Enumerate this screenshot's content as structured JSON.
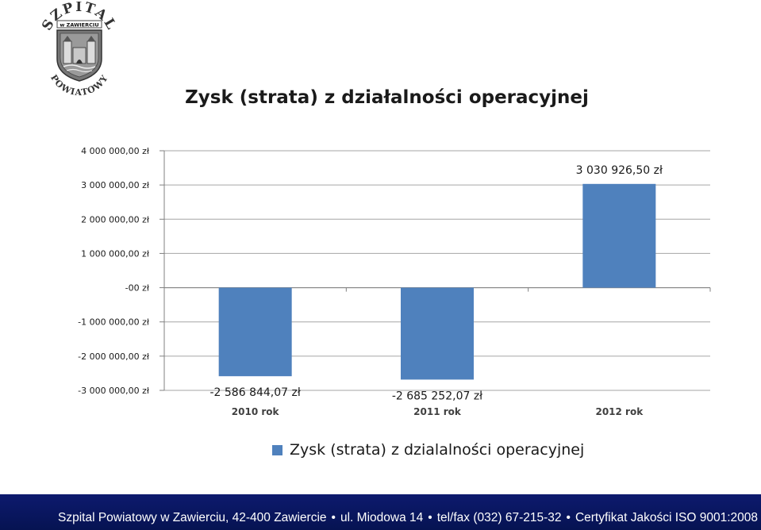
{
  "logo": {
    "arc_top": "SZPITAL",
    "small_text": "w ZAWIERCIU",
    "arc_bottom": "POWIATOWY"
  },
  "chart_data": {
    "type": "bar",
    "title": "Zysk (strata) z działalności operacyjnej",
    "categories": [
      "2010 rok",
      "2011 rok",
      "2012 rok"
    ],
    "series": [
      {
        "name": "Zysk (strata) z dzialalności operacyjnej",
        "values": [
          -2586844.07,
          -2685252.07,
          3030926.5
        ],
        "color": "#4f81bd"
      }
    ],
    "data_labels": [
      "-2 586 844,07 zł",
      "-2 685 252,07 zł",
      "3 030 926,50 zł"
    ],
    "y_ticks": [
      {
        "value": 4000000,
        "label": "4 000 000,00 zł"
      },
      {
        "value": 3000000,
        "label": "3 000 000,00 zł"
      },
      {
        "value": 2000000,
        "label": "2 000 000,00 zł"
      },
      {
        "value": 1000000,
        "label": "1 000 000,00 zł"
      },
      {
        "value": 0,
        "label": "-00 zł"
      },
      {
        "value": -1000000,
        "label": "-1 000 000,00 zł"
      },
      {
        "value": -2000000,
        "label": "-2 000 000,00 zł"
      },
      {
        "value": -3000000,
        "label": "-3 000 000,00 zł"
      }
    ],
    "ylim": [
      -3000000,
      4000000
    ],
    "grid": true,
    "legend_position": "bottom"
  },
  "footer": {
    "parts": [
      "Szpital Powiatowy w Zawierciu, 42-400 Zawiercie",
      "ul. Miodowa 14",
      "tel/fax (032) 67-215-32",
      "Certyfikat Jakości ISO 9001:2008"
    ]
  }
}
